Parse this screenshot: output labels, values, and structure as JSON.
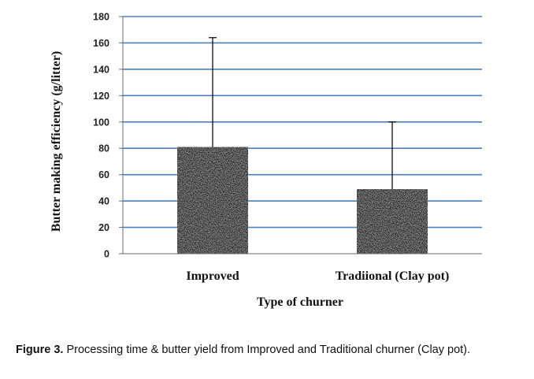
{
  "chart_data": {
    "type": "bar",
    "categories": [
      "Improved",
      "Tradiional (Clay pot)"
    ],
    "values": [
      81,
      49
    ],
    "error_upper": [
      164,
      100
    ],
    "xlabel": "Type of churner",
    "ylabel": "Butter making efficiency (g/litter)",
    "ylim": [
      0,
      180
    ],
    "yticks": [
      0,
      20,
      40,
      60,
      80,
      100,
      120,
      140,
      160,
      180
    ],
    "grid": true,
    "bar_fill": "speckled gray texture"
  },
  "caption": {
    "label": "Figure 3.",
    "text": " Processing time & butter yield from Improved and Traditional churner (Clay pot)."
  },
  "colors": {
    "gridline": "#4a7fc1",
    "axis": "#6b6b6b"
  }
}
